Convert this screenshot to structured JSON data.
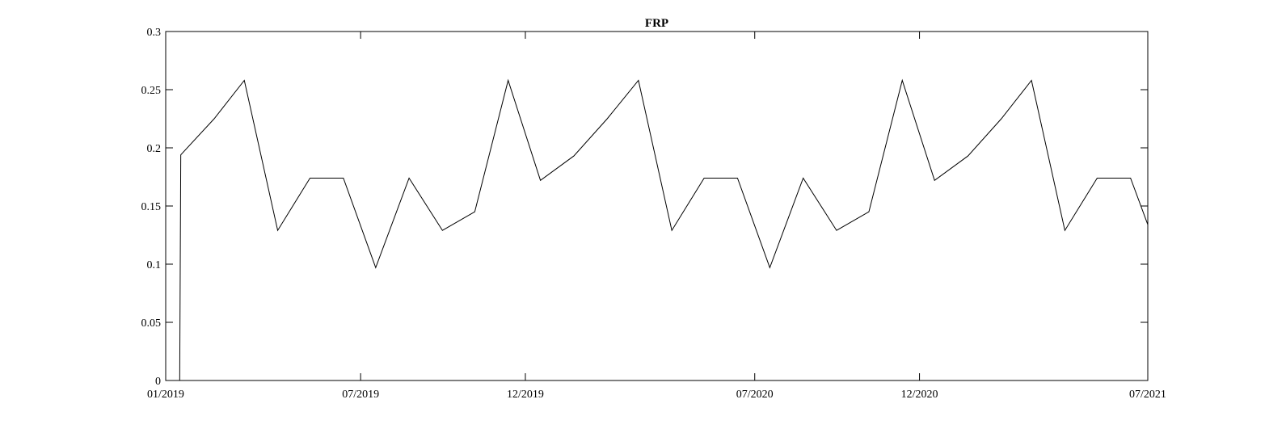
{
  "chart_data": {
    "type": "line",
    "title": "FRP",
    "xlabel": "",
    "ylabel": "",
    "xlim": [
      "2019-01-01",
      "2021-07-01"
    ],
    "ylim": [
      0,
      0.3
    ],
    "grid": false,
    "x_ticks": [
      {
        "date": "2019-01-01",
        "label": "01/2019"
      },
      {
        "date": "2019-07-01",
        "label": "07/2019"
      },
      {
        "date": "2019-12-01",
        "label": "12/2019"
      },
      {
        "date": "2020-07-01",
        "label": "07/2020"
      },
      {
        "date": "2020-12-01",
        "label": "12/2020"
      },
      {
        "date": "2021-07-01",
        "label": "07/2021"
      }
    ],
    "y_ticks": [
      {
        "value": 0,
        "label": "0"
      },
      {
        "value": 0.05,
        "label": "0.05"
      },
      {
        "value": 0.1,
        "label": "0.1"
      },
      {
        "value": 0.15,
        "label": "0.15"
      },
      {
        "value": 0.2,
        "label": "0.2"
      },
      {
        "value": 0.25,
        "label": "0.25"
      },
      {
        "value": 0.3,
        "label": "0.3"
      }
    ],
    "series": [
      {
        "color": "#000000",
        "points": [
          {
            "x": "2019-01-01",
            "y": 0
          },
          {
            "x": "2019-01-14",
            "y": 0
          },
          {
            "x": "2019-01-15",
            "y": 0.194
          },
          {
            "x": "2019-02-15",
            "y": 0.225
          },
          {
            "x": "2019-03-15",
            "y": 0.258
          },
          {
            "x": "2019-04-15",
            "y": 0.129
          },
          {
            "x": "2019-05-15",
            "y": 0.174
          },
          {
            "x": "2019-06-15",
            "y": 0.174
          },
          {
            "x": "2019-07-15",
            "y": 0.097
          },
          {
            "x": "2019-08-15",
            "y": 0.174
          },
          {
            "x": "2019-09-15",
            "y": 0.129
          },
          {
            "x": "2019-10-15",
            "y": 0.145
          },
          {
            "x": "2019-11-15",
            "y": 0.258
          },
          {
            "x": "2019-12-15",
            "y": 0.172
          },
          {
            "x": "2020-01-15",
            "y": 0.193
          },
          {
            "x": "2020-02-15",
            "y": 0.225
          },
          {
            "x": "2020-03-15",
            "y": 0.258
          },
          {
            "x": "2020-04-15",
            "y": 0.129
          },
          {
            "x": "2020-05-15",
            "y": 0.174
          },
          {
            "x": "2020-06-15",
            "y": 0.174
          },
          {
            "x": "2020-07-15",
            "y": 0.097
          },
          {
            "x": "2020-08-15",
            "y": 0.174
          },
          {
            "x": "2020-09-15",
            "y": 0.129
          },
          {
            "x": "2020-10-15",
            "y": 0.145
          },
          {
            "x": "2020-11-15",
            "y": 0.258
          },
          {
            "x": "2020-12-15",
            "y": 0.172
          },
          {
            "x": "2021-01-15",
            "y": 0.193
          },
          {
            "x": "2021-02-15",
            "y": 0.225
          },
          {
            "x": "2021-03-15",
            "y": 0.258
          },
          {
            "x": "2021-04-15",
            "y": 0.129
          },
          {
            "x": "2021-05-15",
            "y": 0.174
          },
          {
            "x": "2021-06-15",
            "y": 0.174
          },
          {
            "x": "2021-07-01",
            "y": 0.134
          }
        ]
      }
    ]
  }
}
